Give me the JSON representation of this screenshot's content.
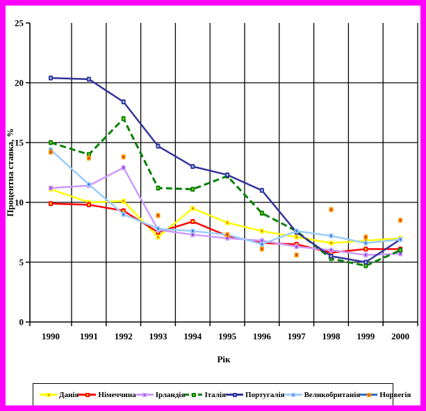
{
  "frame": {
    "border_color": "#FF00FF",
    "background": "#FFFFFF"
  },
  "chart_data": {
    "type": "line",
    "title": "",
    "xlabel": "Рік",
    "ylabel": "Процентна ставка, %",
    "x": [
      "1990",
      "1991",
      "1992",
      "1993",
      "1994",
      "1995",
      "1996",
      "1997",
      "1998",
      "1999",
      "2000"
    ],
    "ylim": [
      0,
      25
    ],
    "yticks": [
      0,
      5,
      10,
      15,
      20,
      25
    ],
    "grid": true,
    "legend_position": "bottom",
    "series": [
      {
        "name": "Данія",
        "slug": "denmark",
        "color": "#FFFF00",
        "marker": "#FFFF00",
        "marker_inner": "#FF6600",
        "line_style": "solid",
        "values": [
          11.1,
          10.0,
          10.1,
          7.1,
          9.5,
          8.3,
          7.6,
          7.1,
          6.6,
          6.8,
          7.0
        ]
      },
      {
        "name": "Німеччина",
        "slug": "germany",
        "color": "#FF0000",
        "marker": "#FF0000",
        "marker_inner": "#FFFF00",
        "line_style": "solid",
        "values": [
          9.9,
          9.8,
          9.3,
          7.5,
          8.4,
          7.2,
          6.6,
          6.5,
          5.8,
          6.1,
          6.1
        ]
      },
      {
        "name": "Ірландія",
        "slug": "ireland",
        "color": "#CC99FF",
        "marker": "#CC99FF",
        "marker_inner": "#9933CC",
        "line_style": "solid",
        "values": [
          11.2,
          11.4,
          12.9,
          7.7,
          7.3,
          7.0,
          6.8,
          6.3,
          6.0,
          5.6,
          5.7
        ]
      },
      {
        "name": "Італія",
        "slug": "italy",
        "color": "#008000",
        "marker": "#008000",
        "marker_inner": "#99CC00",
        "line_style": "dashed",
        "values": [
          15.0,
          14.0,
          17.0,
          11.2,
          11.1,
          12.2,
          9.1,
          7.6,
          5.3,
          4.7,
          6.0
        ]
      },
      {
        "name": "Португалія",
        "slug": "portugal",
        "color": "#333399",
        "marker": "#333399",
        "marker_inner": "#99CCFF",
        "line_style": "solid",
        "values": [
          20.4,
          20.3,
          18.4,
          14.7,
          13.0,
          12.3,
          11.0,
          7.5,
          5.5,
          5.0,
          6.9
        ]
      },
      {
        "name": "Великобританія",
        "slug": "uk",
        "color": "#99CCFF",
        "marker": "#99CCFF",
        "marker_inner": "#3366CC",
        "line_style": "solid",
        "values": [
          14.4,
          11.5,
          9.0,
          7.8,
          7.6,
          7.3,
          6.5,
          7.6,
          7.2,
          6.6,
          6.9
        ]
      },
      {
        "name": "Норвегія",
        "slug": "norway",
        "color": "#3366CC",
        "marker": "#FF9900",
        "marker_inner": "#CC3300",
        "line_style": "none",
        "values": [
          14.2,
          13.7,
          13.8,
          8.9,
          null,
          7.3,
          6.1,
          5.6,
          9.4,
          7.1,
          8.5
        ]
      }
    ]
  }
}
